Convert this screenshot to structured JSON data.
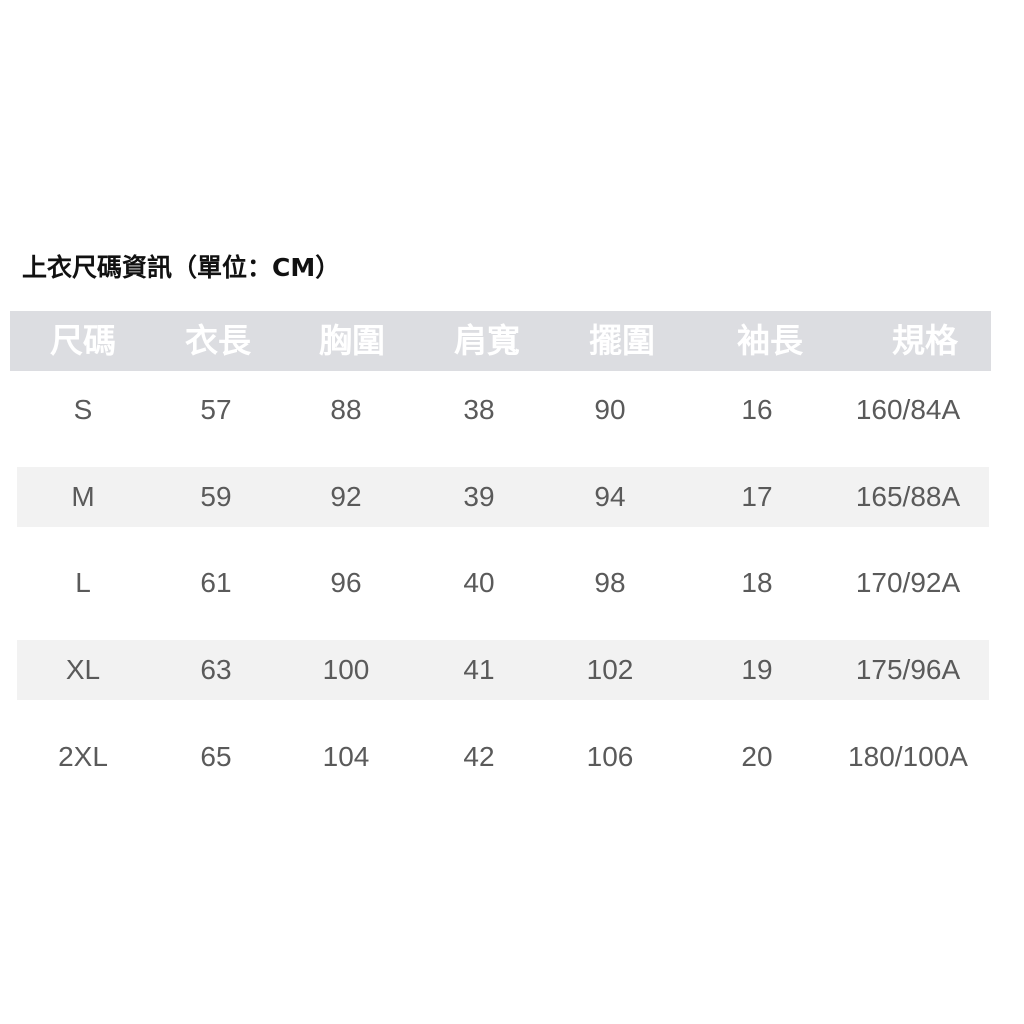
{
  "title": "上衣尺碼資訊（單位：CM）",
  "colors": {
    "header_bg": "#dcdde1",
    "stripe_bg": "#f2f2f2",
    "header_text": "#ffffff",
    "cell_text": "#5a5a5a"
  },
  "table": {
    "headers": [
      "尺碼",
      "衣長",
      "胸圍",
      "肩寬",
      "擺圍",
      "袖長",
      "規格"
    ],
    "rows": [
      [
        "S",
        "57",
        "88",
        "38",
        "90",
        "16",
        "160/84A"
      ],
      [
        "M",
        "59",
        "92",
        "39",
        "94",
        "17",
        "165/88A"
      ],
      [
        "L",
        "61",
        "96",
        "40",
        "98",
        "18",
        "170/92A"
      ],
      [
        "XL",
        "63",
        "100",
        "41",
        "102",
        "19",
        "175/96A"
      ],
      [
        "2XL",
        "65",
        "104",
        "42",
        "106",
        "20",
        "180/100A"
      ]
    ]
  }
}
